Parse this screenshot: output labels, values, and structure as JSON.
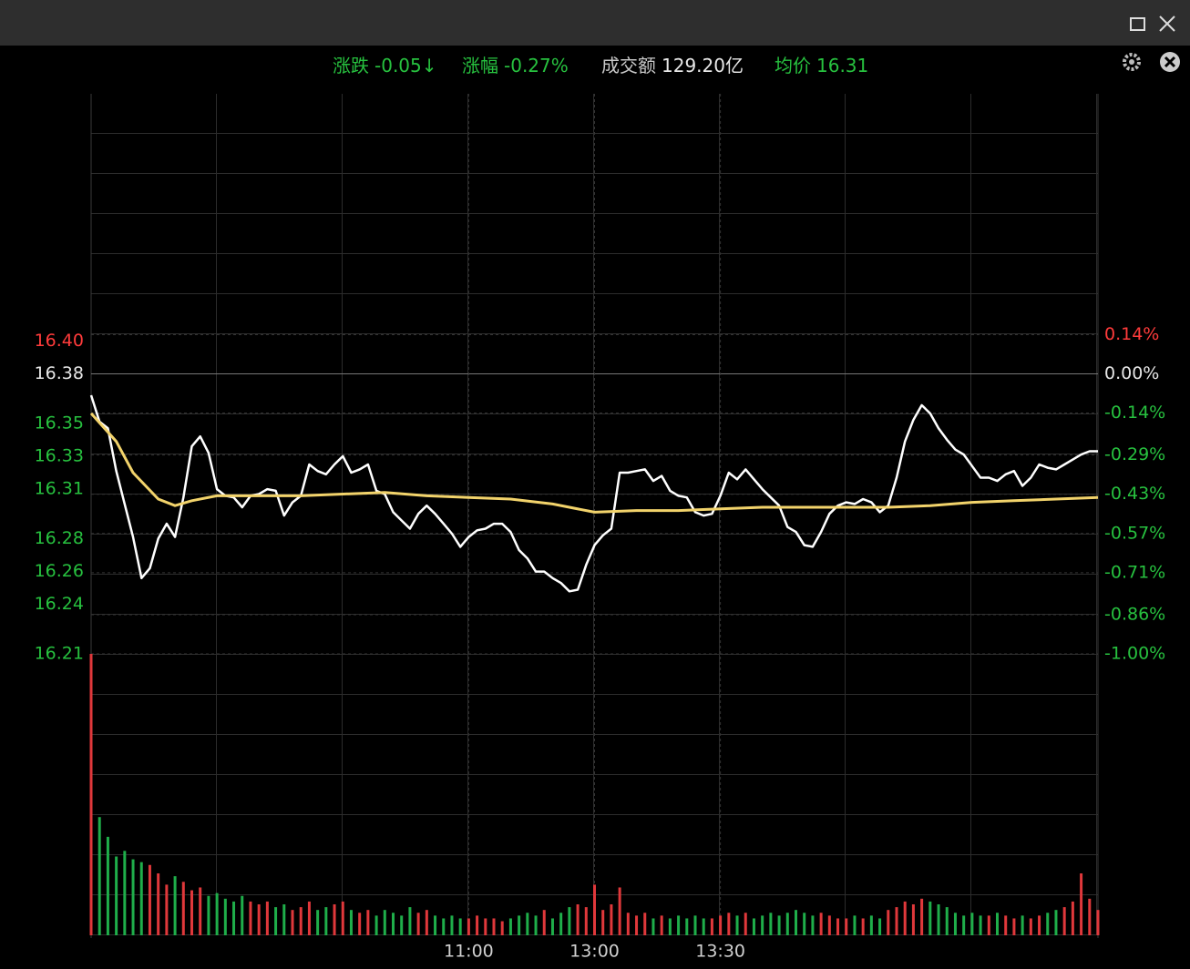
{
  "window": {
    "header": [
      {
        "label": "涨跌",
        "value": "-0.05↓",
        "color": "#27c13f"
      },
      {
        "label": "涨幅",
        "value": "-0.27%",
        "color": "#27c13f"
      },
      {
        "label": "成交额",
        "value": "129.20亿",
        "color": "#c8c8c8"
      },
      {
        "label": "均价",
        "value": "16.31",
        "color": "#27c13f"
      }
    ]
  },
  "chart_data": {
    "type": "line",
    "x": [
      0,
      2,
      4,
      6,
      8,
      10,
      12,
      14,
      16,
      18,
      20,
      22,
      24,
      26,
      28,
      30,
      32,
      34,
      36,
      38,
      40,
      42,
      44,
      46,
      48,
      50,
      52,
      54,
      56,
      58,
      60,
      62,
      64,
      66,
      68,
      70,
      72,
      74,
      76,
      78,
      80,
      82,
      84,
      86,
      88,
      90,
      92,
      94,
      96,
      98,
      100,
      102,
      104,
      106,
      108,
      110,
      112,
      114,
      116,
      118,
      120,
      122,
      124,
      126,
      128,
      130,
      132,
      134,
      136,
      138,
      140,
      142,
      144,
      146,
      148,
      150,
      152,
      154,
      156,
      158,
      160,
      162,
      164,
      166,
      168,
      170,
      172,
      174,
      176,
      178,
      180,
      182,
      184,
      186,
      188,
      190,
      192,
      194,
      196,
      198,
      200,
      202,
      204,
      206,
      208,
      210,
      212,
      214,
      216,
      218,
      220,
      222,
      224,
      226,
      228,
      230,
      232,
      234,
      236,
      238,
      240
    ],
    "xlim": [
      0,
      240
    ],
    "xticks": [
      {
        "value": 90,
        "label": "11:00"
      },
      {
        "value": 120,
        "label": "13:00"
      },
      {
        "value": 150,
        "label": "13:30"
      }
    ],
    "ylim": [
      16.21,
      16.55
    ],
    "yticks": [
      {
        "value": 16.4,
        "label": "16.40"
      },
      16.38,
      16.35,
      16.33,
      16.31,
      16.28,
      16.26,
      16.24,
      16.21
    ],
    "y2lim": [
      -1,
      1
    ],
    "y2ticks": [
      {
        "value": 0.14,
        "label": "0.14%"
      },
      {
        "value": 0,
        "label": "0.00%"
      },
      {
        "value": -0.14,
        "label": "-0.14%"
      },
      {
        "value": -0.29,
        "label": "-0.29%"
      },
      {
        "value": -0.43,
        "label": "-0.43%"
      },
      {
        "value": -0.57,
        "label": "-0.57%"
      },
      {
        "value": -0.71,
        "label": "-0.71%"
      },
      {
        "value": -0.86,
        "label": "-0.86%"
      },
      {
        "value": -1,
        "label": "-1.00%"
      }
    ],
    "tick_colors": {
      "up": "#ff3b3b",
      "flat": "#e6e6e6",
      "down": "#27c13f"
    },
    "series": [
      {
        "color": "#ffffff",
        "values": [
          16.367,
          16.351,
          16.347,
          16.321,
          16.301,
          16.281,
          16.256,
          16.262,
          16.28,
          16.289,
          16.281,
          16.305,
          16.336,
          16.342,
          16.332,
          16.31,
          16.306,
          16.305,
          16.299,
          16.306,
          16.307,
          16.31,
          16.309,
          16.294,
          16.302,
          16.306,
          16.325,
          16.321,
          16.319,
          16.325,
          16.33,
          16.32,
          16.322,
          16.325,
          16.309,
          16.307,
          16.296,
          16.291,
          16.286,
          16.295,
          16.3,
          16.295,
          16.289,
          16.283,
          16.275,
          16.281,
          16.285,
          16.286,
          16.289,
          16.289,
          16.284,
          16.273,
          16.268,
          16.26,
          16.26,
          16.256,
          16.253,
          16.248,
          16.249,
          16.264,
          16.276,
          16.282,
          16.286,
          16.32,
          16.32,
          16.321,
          16.322,
          16.315,
          16.318,
          16.309,
          16.306,
          16.305,
          16.296,
          16.294,
          16.295,
          16.306,
          16.32,
          16.316,
          16.322,
          16.316,
          16.31,
          16.305,
          16.3,
          16.287,
          16.284,
          16.276,
          16.275,
          16.284,
          16.295,
          16.3,
          16.302,
          16.301,
          16.304,
          16.302,
          16.296,
          16.3,
          16.317,
          16.339,
          16.352,
          16.361,
          16.356,
          16.347,
          16.34,
          16.334,
          16.331,
          16.324,
          16.317,
          16.317,
          16.315,
          16.319,
          16.321,
          16.312,
          16.317,
          16.325,
          16.323,
          16.322,
          16.325,
          16.328,
          16.331,
          16.333,
          16.333
        ]
      },
      {
        "color": "#f2d36b",
        "x": [
          0,
          6,
          10,
          16,
          20,
          24,
          30,
          40,
          50,
          60,
          70,
          80,
          90,
          100,
          110,
          120,
          130,
          140,
          150,
          160,
          170,
          180,
          190,
          200,
          210,
          220,
          230,
          240
        ],
        "values": [
          16.356,
          16.339,
          16.32,
          16.304,
          16.3,
          16.303,
          16.306,
          16.306,
          16.306,
          16.307,
          16.308,
          16.306,
          16.305,
          16.304,
          16.301,
          16.296,
          16.297,
          16.297,
          16.298,
          16.299,
          16.299,
          16.299,
          16.299,
          16.3,
          16.302,
          16.303,
          16.304,
          16.305
        ]
      }
    ],
    "volume": {
      "ylim": [
        0,
        100
      ],
      "up_color": "#e0383b",
      "down_color": "#1fae4a",
      "values": [
        100,
        42,
        35,
        28,
        30,
        27,
        26,
        25,
        22,
        18,
        21,
        19,
        16,
        17,
        14,
        15,
        13,
        12,
        14,
        12,
        11,
        12,
        10,
        11,
        9,
        10,
        12,
        9,
        10,
        11,
        12,
        9,
        8,
        9,
        7,
        9,
        8,
        7,
        10,
        8,
        9,
        7,
        6,
        7,
        6,
        6,
        7,
        6,
        6,
        5,
        6,
        7,
        8,
        7,
        9,
        6,
        8,
        10,
        11,
        10,
        18,
        9,
        11,
        17,
        8,
        7,
        8,
        6,
        7,
        6,
        7,
        6,
        7,
        6,
        6,
        7,
        8,
        7,
        8,
        6,
        7,
        8,
        7,
        8,
        9,
        8,
        7,
        8,
        7,
        6,
        6,
        7,
        6,
        7,
        6,
        9,
        10,
        12,
        11,
        13,
        12,
        11,
        10,
        8,
        7,
        8,
        7,
        7,
        8,
        7,
        6,
        7,
        6,
        7,
        8,
        9,
        10,
        12,
        22,
        13,
        9
      ]
    }
  }
}
